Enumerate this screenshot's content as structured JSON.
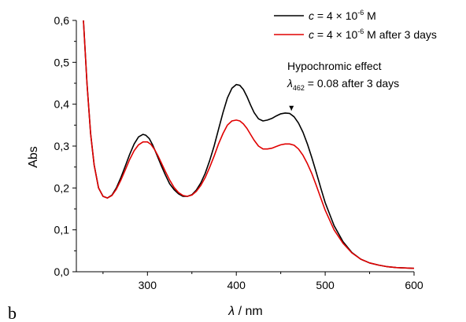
{
  "panel_label": "b",
  "chart_data": {
    "type": "line",
    "xlabel_symbol": "λ",
    "xlabel_unit": " / nm",
    "ylabel": "Abs",
    "xlim": [
      220,
      600
    ],
    "ylim": [
      0.0,
      0.6
    ],
    "x_ticks": [
      300,
      400,
      500,
      600
    ],
    "y_ticks": [
      0.0,
      0.1,
      0.2,
      0.3,
      0.4,
      0.5,
      0.6
    ],
    "y_tick_labels": [
      "0,0",
      "0,1",
      "0,2",
      "0,3",
      "0,4",
      "0,5",
      "0,6"
    ],
    "grid": false,
    "legend_position": "top-right",
    "series": [
      {
        "legend_prefix": "c",
        "legend_mid": " = 4 × 10",
        "legend_sup": "-6",
        "legend_suffix": " M",
        "color": "#000000",
        "x": [
          228,
          232,
          236,
          240,
          245,
          250,
          255,
          260,
          265,
          270,
          275,
          280,
          285,
          290,
          295,
          298,
          302,
          306,
          310,
          315,
          320,
          325,
          330,
          335,
          340,
          345,
          350,
          355,
          360,
          365,
          370,
          375,
          380,
          385,
          390,
          395,
          400,
          404,
          408,
          412,
          416,
          420,
          425,
          430,
          435,
          440,
          445,
          450,
          455,
          460,
          465,
          470,
          475,
          480,
          485,
          490,
          495,
          500,
          510,
          520,
          530,
          540,
          550,
          560,
          570,
          580,
          590,
          600
        ],
        "y": [
          0.6,
          0.45,
          0.33,
          0.255,
          0.2,
          0.18,
          0.176,
          0.183,
          0.2,
          0.224,
          0.252,
          0.28,
          0.305,
          0.322,
          0.328,
          0.326,
          0.318,
          0.302,
          0.282,
          0.256,
          0.232,
          0.21,
          0.196,
          0.186,
          0.18,
          0.18,
          0.184,
          0.195,
          0.212,
          0.235,
          0.265,
          0.3,
          0.34,
          0.38,
          0.415,
          0.438,
          0.447,
          0.445,
          0.435,
          0.418,
          0.398,
          0.38,
          0.365,
          0.36,
          0.362,
          0.366,
          0.372,
          0.377,
          0.379,
          0.378,
          0.37,
          0.355,
          0.333,
          0.305,
          0.272,
          0.237,
          0.2,
          0.165,
          0.11,
          0.072,
          0.046,
          0.03,
          0.021,
          0.016,
          0.012,
          0.01,
          0.009,
          0.008
        ]
      },
      {
        "legend_prefix": "c",
        "legend_mid": " = 4 × 10",
        "legend_sup": "-6",
        "legend_suffix": " M after 3 days",
        "color": "#e00000",
        "x": [
          228,
          232,
          236,
          240,
          245,
          250,
          255,
          260,
          265,
          270,
          275,
          280,
          285,
          290,
          295,
          300,
          304,
          308,
          312,
          316,
          320,
          325,
          330,
          335,
          340,
          345,
          350,
          355,
          360,
          365,
          370,
          375,
          380,
          385,
          390,
          395,
          400,
          404,
          408,
          412,
          416,
          420,
          425,
          430,
          435,
          440,
          445,
          450,
          455,
          460,
          465,
          470,
          475,
          480,
          485,
          490,
          495,
          500,
          510,
          520,
          530,
          540,
          550,
          560,
          570,
          580,
          590,
          600
        ],
        "y": [
          0.6,
          0.45,
          0.33,
          0.255,
          0.2,
          0.18,
          0.176,
          0.182,
          0.197,
          0.218,
          0.243,
          0.268,
          0.289,
          0.303,
          0.31,
          0.31,
          0.304,
          0.292,
          0.276,
          0.258,
          0.24,
          0.219,
          0.201,
          0.189,
          0.182,
          0.18,
          0.183,
          0.192,
          0.206,
          0.225,
          0.249,
          0.276,
          0.305,
          0.33,
          0.35,
          0.36,
          0.362,
          0.36,
          0.353,
          0.342,
          0.328,
          0.314,
          0.3,
          0.293,
          0.293,
          0.295,
          0.299,
          0.303,
          0.305,
          0.305,
          0.302,
          0.293,
          0.278,
          0.258,
          0.234,
          0.206,
          0.176,
          0.147,
          0.1,
          0.068,
          0.045,
          0.03,
          0.021,
          0.016,
          0.012,
          0.01,
          0.009,
          0.008
        ]
      }
    ],
    "annotation": {
      "line1": "Hypochromic effect",
      "symbol": "λ",
      "subscript": "462",
      "rest": " = 0.08 after 3 days",
      "arrow_x": 462,
      "arrow_from_y": 0.4,
      "arrow_to_y": 0.381
    }
  }
}
